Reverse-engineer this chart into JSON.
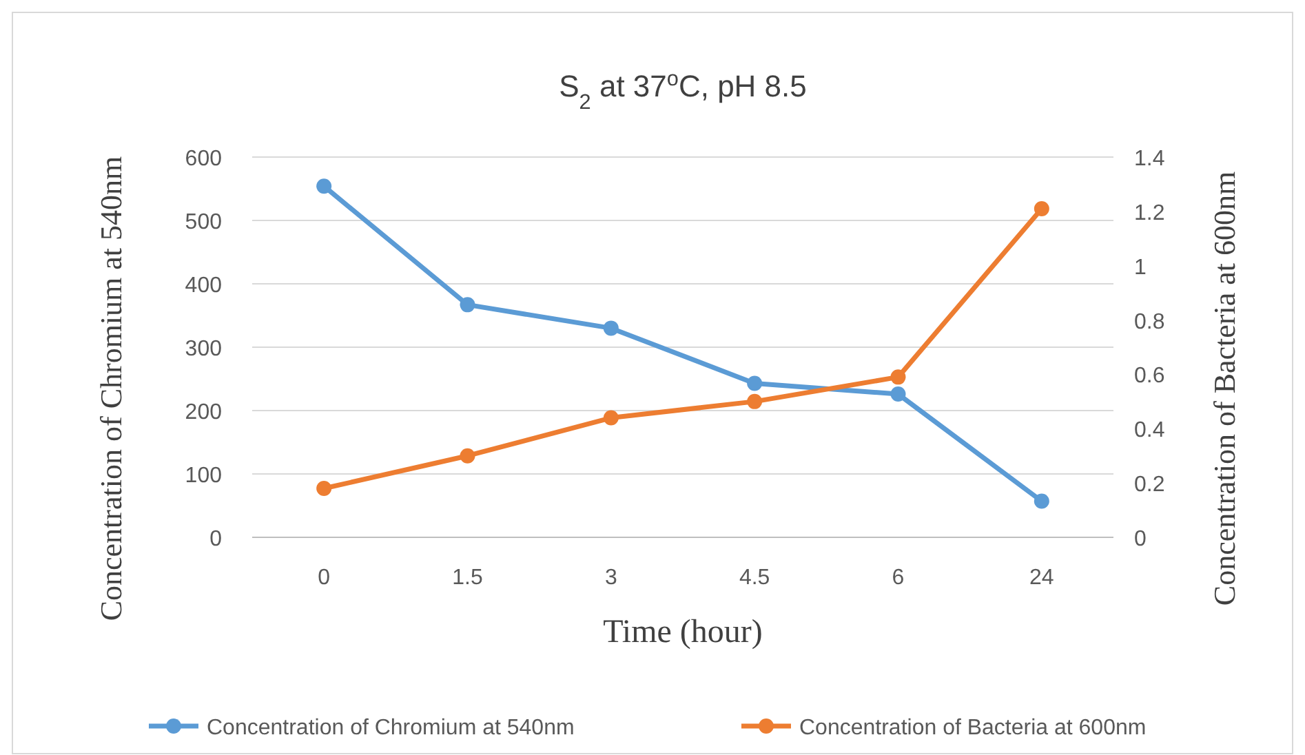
{
  "chart_data": {
    "type": "line",
    "title": "S$_{2}$ at 37$^{o}$C, pH 8.5",
    "xlabel": "Time (hour)",
    "ylabel": "Concentration of Chromium at 540nm",
    "y2label": "Concentration of Bacteria at 600nm",
    "categories": [
      "0",
      "1.5",
      "3",
      "4.5",
      "6",
      "24"
    ],
    "series": [
      {
        "name": "Concentration of Chromium at 540nm",
        "color": "#5b9bd5",
        "values": [
          554,
          367,
          330,
          243,
          226,
          57
        ]
      },
      {
        "name": "Concentration of Bacteria at 600nm",
        "color": "#ed7d31",
        "axis": "y2",
        "values": [
          0.18,
          0.3,
          0.44,
          0.5,
          0.59,
          1.21
        ]
      }
    ],
    "ylim": [
      0,
      600
    ],
    "yticks": [
      0,
      100,
      200,
      300,
      400,
      500,
      600
    ],
    "y2lim": [
      0,
      1.4
    ],
    "y2ticks": [
      0,
      0.2,
      0.4,
      0.6,
      0.8,
      1,
      1.2,
      1.4
    ],
    "grid": "y",
    "legend": "bottom",
    "marker": "circle",
    "line_style": "solid"
  }
}
